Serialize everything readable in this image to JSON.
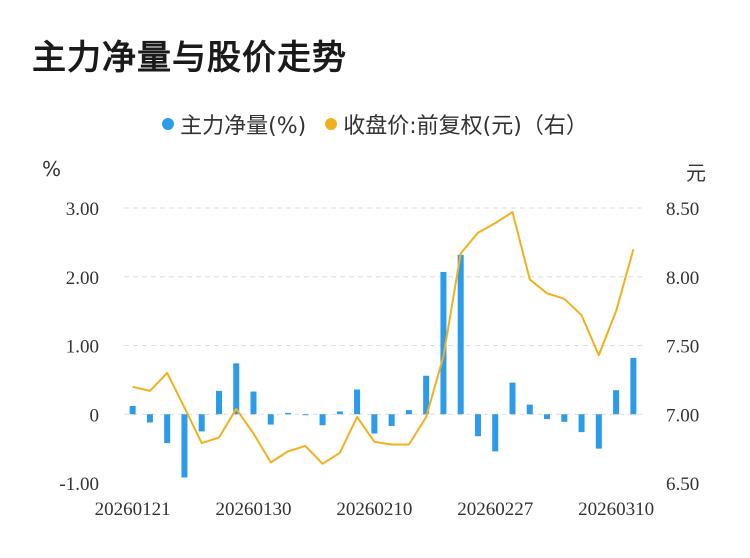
{
  "title": "主力净量与股价走势",
  "legend": {
    "net_label": "主力净量(%)",
    "price_label": "收盘价:前复权(元)（右）",
    "net_color": "#2c9bea",
    "price_color": "#f2b01d"
  },
  "units": {
    "left": "%",
    "right": "元"
  },
  "chart_data": {
    "type": "bar",
    "x_tick_labels": [
      "20260121",
      "20260130",
      "20260210",
      "20260227",
      "20260310"
    ],
    "y_left_ticks": [
      "3.00",
      "2.00",
      "1.00",
      "0",
      "-1.00"
    ],
    "y_right_ticks": [
      "8.50",
      "8.00",
      "7.50",
      "7.00",
      "6.50"
    ],
    "ylim_left": [
      -1.0,
      3.0
    ],
    "ylim_right": [
      6.5,
      8.5
    ],
    "grid": true,
    "legend_position": "top",
    "series": [
      {
        "name": "主力净量(%)",
        "type": "bar",
        "values": [
          0.12,
          -0.12,
          -0.42,
          -0.92,
          -0.25,
          0.34,
          0.74,
          0.33,
          -0.15,
          0.02,
          0.0,
          -0.16,
          0.04,
          0.36,
          -0.28,
          -0.17,
          0.06,
          0.56,
          2.07,
          2.32,
          -0.32,
          -0.54,
          0.46,
          0.14,
          -0.07,
          -0.11,
          -0.26,
          -0.5,
          0.35,
          0.82
        ]
      },
      {
        "name": "收盘价:前复权(元)（右）",
        "type": "line",
        "values": [
          7.2,
          7.17,
          7.3,
          7.05,
          6.79,
          6.83,
          7.04,
          6.86,
          6.65,
          6.73,
          6.77,
          6.64,
          6.72,
          6.98,
          6.8,
          6.78,
          6.78,
          6.98,
          7.42,
          8.17,
          8.32,
          8.39,
          8.47,
          7.98,
          7.88,
          7.84,
          7.72,
          7.43,
          7.75,
          8.2
        ]
      }
    ]
  }
}
